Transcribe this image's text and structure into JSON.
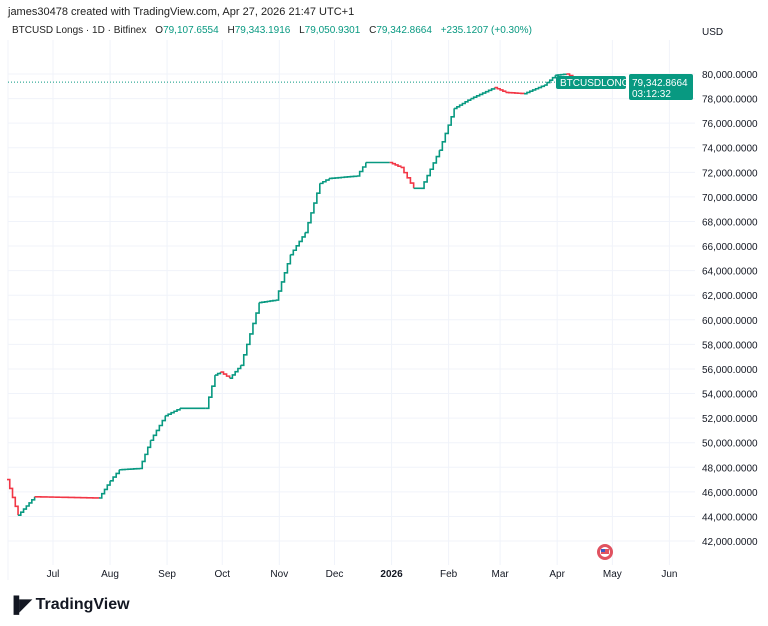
{
  "header": {
    "credit": "james30478 created with TradingView.com, Apr 27, 2026 21:47 UTC+1"
  },
  "legend": {
    "symbol": "BTCUSD Longs · 1D · Bitfinex",
    "o_label": "O",
    "o": "79,107.6554",
    "h_label": "H",
    "h": "79,343.1916",
    "l_label": "L",
    "l": "79,050.9301",
    "c_label": "C",
    "c": "79,342.8664",
    "change": "+235.1207 (+0.30%)"
  },
  "price_label": {
    "name": "BTCUSDLONGS",
    "price": "79,342.8664",
    "countdown": "03:12:32"
  },
  "brand": {
    "name": "TradingView"
  },
  "colors": {
    "up": "#089981",
    "down": "#f23645",
    "grid": "#f0f3fa"
  },
  "chart_data": {
    "type": "line",
    "currency": "USD",
    "ylim": [
      40500,
      82000
    ],
    "y_ticks": [
      "42,000.0000",
      "44,000.0000",
      "46,000.0000",
      "48,000.0000",
      "50,000.0000",
      "52,000.0000",
      "54,000.0000",
      "56,000.0000",
      "58,000.0000",
      "60,000.0000",
      "62,000.0000",
      "64,000.0000",
      "66,000.0000",
      "68,000.0000",
      "70,000.0000",
      "72,000.0000",
      "74,000.0000",
      "76,000.0000",
      "78,000.0000",
      "80,000.0000"
    ],
    "x_ticks": [
      {
        "label": "Jul",
        "date": "2025-07-01"
      },
      {
        "label": "Aug",
        "date": "2025-08-01"
      },
      {
        "label": "Sep",
        "date": "2025-09-01"
      },
      {
        "label": "Oct",
        "date": "2025-10-01"
      },
      {
        "label": "Nov",
        "date": "2025-11-01"
      },
      {
        "label": "Dec",
        "date": "2025-12-01"
      },
      {
        "label": "2026",
        "date": "2026-01-01"
      },
      {
        "label": "Feb",
        "date": "2026-02-01"
      },
      {
        "label": "Mar",
        "date": "2026-03-01"
      },
      {
        "label": "Apr",
        "date": "2026-04-01"
      },
      {
        "label": "May",
        "date": "2026-05-01"
      },
      {
        "label": "Jun",
        "date": "2026-06-01"
      }
    ],
    "series": [
      {
        "points": [
          [
            "2025-06-06",
            47000
          ],
          [
            "2025-06-12",
            44100
          ],
          [
            "2025-06-21",
            45600
          ],
          [
            "2025-07-26",
            45500
          ],
          [
            "2025-08-01",
            46900
          ],
          [
            "2025-08-06",
            47800
          ],
          [
            "2025-08-17",
            47900
          ],
          [
            "2025-08-23",
            50200
          ],
          [
            "2025-08-31",
            52200
          ],
          [
            "2025-09-08",
            52800
          ],
          [
            "2025-09-22",
            52800
          ],
          [
            "2025-09-27",
            55500
          ],
          [
            "2025-09-30",
            55750
          ],
          [
            "2025-10-05",
            55250
          ],
          [
            "2025-10-11",
            56300
          ],
          [
            "2025-10-21",
            61400
          ],
          [
            "2025-10-30",
            61600
          ],
          [
            "2025-11-07",
            65300
          ],
          [
            "2025-11-15",
            67100
          ],
          [
            "2025-11-23",
            71100
          ],
          [
            "2025-11-28",
            71500
          ],
          [
            "2025-12-13",
            71700
          ],
          [
            "2025-12-18",
            72800
          ],
          [
            "2025-12-31",
            72800
          ],
          [
            "2026-01-06",
            72400
          ],
          [
            "2026-01-13",
            70700
          ],
          [
            "2026-01-17",
            70700
          ],
          [
            "2026-01-27",
            73800
          ],
          [
            "2026-02-04",
            77200
          ],
          [
            "2026-02-13",
            78000
          ],
          [
            "2026-02-26",
            78900
          ],
          [
            "2026-03-04",
            78500
          ],
          [
            "2026-03-14",
            78400
          ],
          [
            "2026-03-25",
            79100
          ],
          [
            "2026-03-31",
            79900
          ],
          [
            "2026-04-06",
            80000
          ],
          [
            "2026-04-13",
            79500
          ],
          [
            "2026-04-23",
            78950
          ],
          [
            "2026-04-27",
            79342.8664
          ]
        ]
      }
    ]
  }
}
